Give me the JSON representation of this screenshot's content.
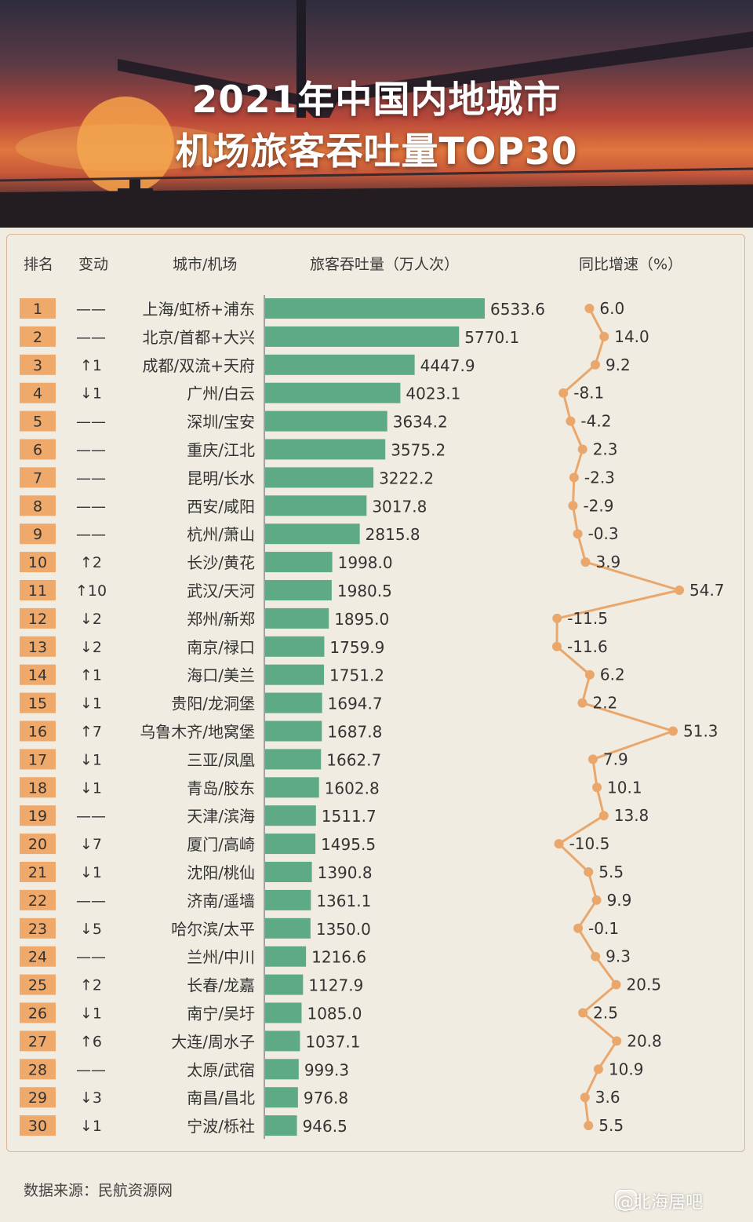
{
  "title_line1": "2021年中国内地城市",
  "title_line2": "机场旅客吞吐量TOP30",
  "headers": {
    "rank": "排名",
    "change": "变动",
    "city": "城市/机场",
    "throughput": "旅客吞吐量（万人次）",
    "growth": "同比增速（%）"
  },
  "source": "数据来源：民航资源网",
  "watermark": "@北海居吧",
  "colors": {
    "rank_box": "#efa96a",
    "bar": "#5faa86",
    "growth_line": "#e9a76c"
  },
  "chart_data": {
    "type": "bar",
    "orientation": "horizontal",
    "categories": [
      "上海/虹桥+浦东",
      "北京/首都+大兴",
      "成都/双流+天府",
      "广州/白云",
      "深圳/宝安",
      "重庆/江北",
      "昆明/长水",
      "西安/咸阳",
      "杭州/萧山",
      "长沙/黄花",
      "武汉/天河",
      "郑州/新郑",
      "南京/禄口",
      "海口/美兰",
      "贵阳/龙洞堡",
      "乌鲁木齐/地窝堡",
      "三亚/凤凰",
      "青岛/胶东",
      "天津/滨海",
      "厦门/高崎",
      "沈阳/桃仙",
      "济南/遥墙",
      "哈尔滨/太平",
      "兰州/中川",
      "长春/龙嘉",
      "南宁/吴圩",
      "大连/周水子",
      "太原/武宿",
      "南昌/昌北",
      "宁波/栎社"
    ],
    "ranks": [
      "1",
      "2",
      "3",
      "4",
      "5",
      "6",
      "7",
      "8",
      "9",
      "10",
      "11",
      "12",
      "13",
      "14",
      "15",
      "16",
      "17",
      "18",
      "19",
      "20",
      "21",
      "22",
      "23",
      "24",
      "25",
      "26",
      "27",
      "28",
      "29",
      "30"
    ],
    "changes": [
      "——",
      "——",
      "↑1",
      "↓1",
      "——",
      "——",
      "——",
      "——",
      "——",
      "↑2",
      "↑10",
      "↓2",
      "↓2",
      "↑1",
      "↓1",
      "↑7",
      "↓1",
      "↓1",
      "——",
      "↓7",
      "↓1",
      "——",
      "↓5",
      "——",
      "↑2",
      "↓1",
      "↑6",
      "——",
      "↓3",
      "↓1"
    ],
    "series": [
      {
        "name": "旅客吞吐量（万人次）",
        "values": [
          6533.6,
          5770.1,
          4447.9,
          4023.1,
          3634.2,
          3575.2,
          3222.2,
          3017.8,
          2815.8,
          1998.0,
          1980.5,
          1895.0,
          1759.9,
          1751.2,
          1694.7,
          1687.8,
          1662.7,
          1602.8,
          1511.7,
          1495.5,
          1390.8,
          1361.1,
          1350.0,
          1216.6,
          1127.9,
          1085.0,
          1037.1,
          999.3,
          976.8,
          946.5
        ],
        "labels": [
          "6533.6",
          "5770.1",
          "4447.9",
          "4023.1",
          "3634.2",
          "3575.2",
          "3222.2",
          "3017.8",
          "2815.8",
          "1998.0",
          "1980.5",
          "1895.0",
          "1759.9",
          "1751.2",
          "1694.7",
          "1687.8",
          "1662.7",
          "1602.8",
          "1511.7",
          "1495.5",
          "1390.8",
          "1361.1",
          "1350.0",
          "1216.6",
          "1127.9",
          "1085.0",
          "1037.1",
          "999.3",
          "976.8",
          "946.5"
        ]
      },
      {
        "name": "同比增速（%）",
        "type": "line",
        "values": [
          6.0,
          14.0,
          9.2,
          -8.1,
          -4.2,
          2.3,
          -2.3,
          -2.9,
          -0.3,
          3.9,
          54.7,
          -11.5,
          -11.6,
          6.2,
          2.2,
          51.3,
          7.9,
          10.1,
          13.8,
          -10.5,
          5.5,
          9.9,
          -0.1,
          9.3,
          20.5,
          2.5,
          20.8,
          10.9,
          3.6,
          5.5
        ],
        "labels": [
          "6.0",
          "14.0",
          "9.2",
          "-8.1",
          "-4.2",
          "2.3",
          "-2.3",
          "-2.9",
          "-0.3",
          "3.9",
          "54.7",
          "-11.5",
          "-11.6",
          "6.2",
          "2.2",
          "51.3",
          "7.9",
          "10.1",
          "13.8",
          "-10.5",
          "5.5",
          "9.9",
          "-0.1",
          "9.3",
          "20.5",
          "2.5",
          "20.8",
          "10.9",
          "3.6",
          "5.5"
        ]
      }
    ],
    "xlim": [
      0,
      6533.6
    ],
    "growth_range": [
      -11.6,
      54.7
    ]
  }
}
